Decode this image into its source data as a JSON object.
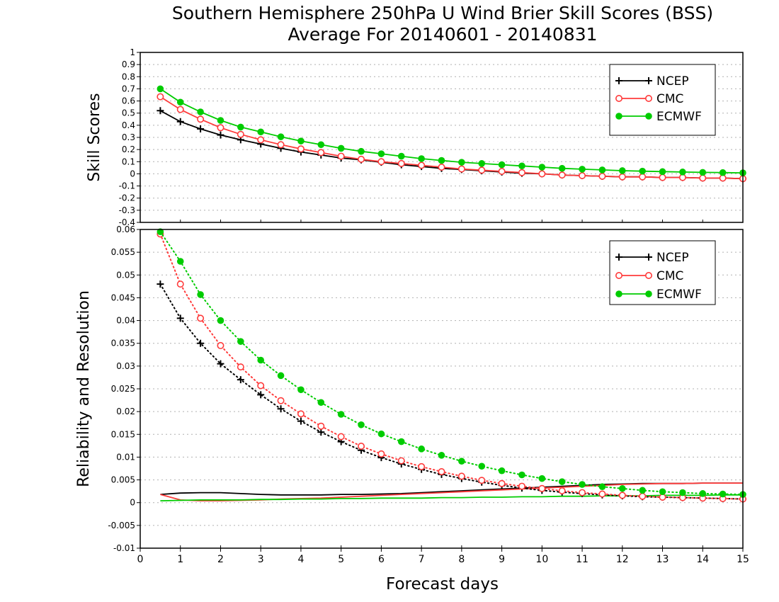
{
  "page": {
    "title_line1": "Southern Hemisphere 250hPa U Wind Brier Skill Scores (BSS)",
    "title_line2": "Average For 20140601 - 20140831"
  },
  "colors": {
    "NCEP": "#000000",
    "CMC": "#ff3b3b",
    "ECMWF": "#00cc00",
    "grid": "#b0b0b0"
  },
  "chart_data": [
    {
      "type": "line",
      "title": "Southern Hemisphere 250hPa U Wind Brier Skill Scores (BSS)",
      "subtitle": "Average For 20140601 - 20140831",
      "xlabel": "",
      "ylabel": "Skill Scores",
      "xlim": [
        0,
        15
      ],
      "ylim": [
        -0.4,
        1
      ],
      "yticks": [
        "-0.4",
        "-0.3",
        "-0.2",
        "-0.1",
        "0",
        "0.1",
        "0.2",
        "0.3",
        "0.4",
        "0.5",
        "0.6",
        "0.7",
        "0.8",
        "0.9",
        "1"
      ],
      "grid": true,
      "legend_position": "top-right",
      "x": [
        0.5,
        1,
        1.5,
        2,
        2.5,
        3,
        3.5,
        4,
        4.5,
        5,
        5.5,
        6,
        6.5,
        7,
        7.5,
        8,
        8.5,
        9,
        9.5,
        10,
        10.5,
        11,
        11.5,
        12,
        12.5,
        13,
        13.5,
        14,
        14.5,
        15
      ],
      "series": [
        {
          "name": "NCEP",
          "style": "solid",
          "marker": "plus",
          "values": [
            0.52,
            0.43,
            0.37,
            0.32,
            0.28,
            0.245,
            0.21,
            0.18,
            0.155,
            0.13,
            0.115,
            0.095,
            0.075,
            0.06,
            0.045,
            0.035,
            0.025,
            0.015,
            0.005,
            0.0,
            -0.01,
            -0.015,
            -0.02,
            -0.025,
            -0.025,
            -0.03,
            -0.03,
            -0.035,
            -0.035,
            -0.04
          ]
        },
        {
          "name": "CMC",
          "style": "solid",
          "marker": "open-circle",
          "values": [
            0.635,
            0.53,
            0.45,
            0.38,
            0.325,
            0.28,
            0.24,
            0.205,
            0.175,
            0.145,
            0.12,
            0.1,
            0.085,
            0.07,
            0.055,
            0.04,
            0.03,
            0.02,
            0.01,
            0.0,
            -0.01,
            -0.015,
            -0.02,
            -0.025,
            -0.025,
            -0.03,
            -0.03,
            -0.035,
            -0.035,
            -0.04
          ]
        },
        {
          "name": "ECMWF",
          "style": "solid",
          "marker": "filled-circle",
          "values": [
            0.7,
            0.59,
            0.51,
            0.44,
            0.385,
            0.345,
            0.305,
            0.27,
            0.24,
            0.21,
            0.185,
            0.165,
            0.145,
            0.125,
            0.11,
            0.095,
            0.085,
            0.075,
            0.065,
            0.055,
            0.045,
            0.038,
            0.032,
            0.026,
            0.022,
            0.018,
            0.015,
            0.012,
            0.01,
            0.008
          ]
        }
      ]
    },
    {
      "type": "line",
      "xlabel": "Forecast days",
      "ylabel": "Reliability and Resolution",
      "xlim": [
        0,
        15
      ],
      "ylim": [
        -0.01,
        0.06
      ],
      "xticks": [
        "0",
        "1",
        "2",
        "3",
        "4",
        "5",
        "6",
        "7",
        "8",
        "9",
        "10",
        "11",
        "12",
        "13",
        "14",
        "15"
      ],
      "yticks": [
        "-0.01",
        "-0.005",
        "0",
        "0.005",
        "0.01",
        "0.015",
        "0.02",
        "0.025",
        "0.03",
        "0.035",
        "0.04",
        "0.045",
        "0.05",
        "0.055",
        "0.06"
      ],
      "grid": true,
      "legend_position": "top-right",
      "x": [
        0.5,
        1,
        1.5,
        2,
        2.5,
        3,
        3.5,
        4,
        4.5,
        5,
        5.5,
        6,
        6.5,
        7,
        7.5,
        8,
        8.5,
        9,
        9.5,
        10,
        10.5,
        11,
        11.5,
        12,
        12.5,
        13,
        13.5,
        14,
        14.5,
        15
      ],
      "series": [
        {
          "name": "NCEP",
          "style": "solid",
          "marker": "none",
          "values": [
            0.0018,
            0.0021,
            0.0022,
            0.0022,
            0.002,
            0.0018,
            0.0017,
            0.0017,
            0.0017,
            0.0018,
            0.0018,
            0.0019,
            0.002,
            0.0022,
            0.0024,
            0.0026,
            0.0028,
            0.003,
            0.0032,
            0.0034,
            0.0036,
            0.0038,
            0.004,
            0.0041,
            0.0042,
            0.0042,
            0.0042,
            0.0043,
            0.0043,
            0.0043
          ]
        },
        {
          "name": "CMC",
          "style": "solid",
          "marker": "none",
          "values": [
            0.0018,
            0.0006,
            0.0004,
            0.0004,
            0.0005,
            0.0006,
            0.0008,
            0.0009,
            0.001,
            0.0012,
            0.0014,
            0.0016,
            0.0018,
            0.002,
            0.0022,
            0.0024,
            0.0026,
            0.0028,
            0.003,
            0.0032,
            0.0034,
            0.0036,
            0.0038,
            0.004,
            0.0041,
            0.0042,
            0.0042,
            0.0043,
            0.0043,
            0.0043
          ]
        },
        {
          "name": "ECMWF",
          "style": "solid",
          "marker": "none",
          "values": [
            0.0004,
            0.0005,
            0.0006,
            0.0006,
            0.0006,
            0.0007,
            0.0007,
            0.0008,
            0.0008,
            0.0009,
            0.0009,
            0.001,
            0.001,
            0.001,
            0.0011,
            0.0011,
            0.0012,
            0.0012,
            0.0013,
            0.0013,
            0.0014,
            0.0014,
            0.0015,
            0.0015,
            0.0015,
            0.0016,
            0.0016,
            0.0016,
            0.0017,
            0.0017
          ]
        },
        {
          "name": "",
          "legend": false,
          "color_of": "NCEP",
          "style": "dotted",
          "marker": "plus",
          "values": [
            0.048,
            0.0405,
            0.035,
            0.0305,
            0.027,
            0.0237,
            0.0206,
            0.0179,
            0.0155,
            0.0134,
            0.0115,
            0.0099,
            0.0085,
            0.0073,
            0.0062,
            0.0053,
            0.0045,
            0.0038,
            0.0032,
            0.0027,
            0.0023,
            0.002,
            0.0017,
            0.0015,
            0.0013,
            0.0012,
            0.0011,
            0.001,
            0.0009,
            0.0008
          ]
        },
        {
          "name": "",
          "legend": false,
          "color_of": "CMC",
          "style": "dotted",
          "marker": "open-circle",
          "values": [
            0.059,
            0.048,
            0.0405,
            0.0345,
            0.0298,
            0.0257,
            0.0224,
            0.0195,
            0.0168,
            0.0145,
            0.0124,
            0.0107,
            0.0092,
            0.0079,
            0.0068,
            0.0058,
            0.0049,
            0.0042,
            0.0036,
            0.0031,
            0.0026,
            0.0022,
            0.0019,
            0.0016,
            0.0014,
            0.0012,
            0.0011,
            0.001,
            0.0009,
            0.0008
          ]
        },
        {
          "name": "",
          "legend": false,
          "color_of": "ECMWF",
          "style": "dotted",
          "marker": "filled-circle",
          "values": [
            0.0595,
            0.053,
            0.0457,
            0.04,
            0.0354,
            0.0313,
            0.0279,
            0.0248,
            0.022,
            0.0194,
            0.0171,
            0.0151,
            0.0134,
            0.0118,
            0.0104,
            0.0091,
            0.008,
            0.007,
            0.0061,
            0.0053,
            0.0046,
            0.004,
            0.0035,
            0.0031,
            0.0027,
            0.0024,
            0.0022,
            0.002,
            0.0019,
            0.0018
          ]
        }
      ]
    }
  ]
}
